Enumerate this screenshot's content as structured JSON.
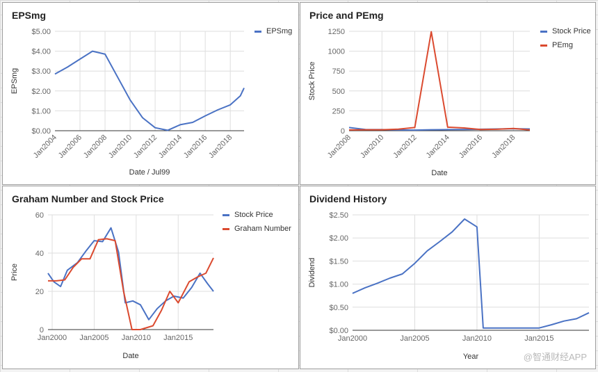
{
  "chart_data": [
    {
      "type": "line",
      "title": "EPSmg",
      "xlabel": "Date / Jul99",
      "ylabel": "EPSmg",
      "x_axis": "year",
      "x_ticks": [
        "Jan2004",
        "Jan2006",
        "Jan2008",
        "Jan2010",
        "Jan2012",
        "Jan2014",
        "Jan2016",
        "Jan2018"
      ],
      "tick_rotate": true,
      "xlim": [
        2004,
        2019.1
      ],
      "ylim": [
        0,
        5
      ],
      "y_ticks": [
        "$0.00",
        "$1.00",
        "$2.00",
        "$3.00",
        "$4.00",
        "$5.00"
      ],
      "legend": "right",
      "series": [
        {
          "name": "EPSmg",
          "color": "#4a72c4",
          "x": [
            2004,
            2005,
            2006,
            2007,
            2008,
            2009,
            2010,
            2011,
            2012,
            2013,
            2014,
            2015,
            2016,
            2017,
            2018,
            2018.8,
            2019.1
          ],
          "y": [
            2.85,
            3.2,
            3.6,
            4.0,
            3.85,
            2.7,
            1.55,
            0.65,
            0.15,
            0.02,
            0.3,
            0.42,
            0.75,
            1.05,
            1.3,
            1.75,
            2.15
          ]
        }
      ]
    },
    {
      "type": "line",
      "title": "Price and PEmg",
      "xlabel": "Date",
      "ylabel": "Stock Price",
      "x_axis": "year",
      "x_ticks": [
        "Jan2008",
        "Jan2010",
        "Jan2012",
        "Jan2014",
        "Jan2016",
        "Jan2018"
      ],
      "tick_rotate": true,
      "xlim": [
        2008,
        2019
      ],
      "ylim": [
        0,
        1250
      ],
      "y_ticks": [
        "0",
        "250",
        "500",
        "750",
        "1000",
        "1250"
      ],
      "legend": "right",
      "series": [
        {
          "name": "Stock Price",
          "color": "#4a72c4",
          "x": [
            2008,
            2009,
            2010,
            2011,
            2012,
            2013,
            2014,
            2015,
            2016,
            2017,
            2018,
            2019
          ],
          "y": [
            40,
            15,
            14,
            10,
            8,
            12,
            14,
            15,
            18,
            22,
            25,
            22
          ]
        },
        {
          "name": "PEmg",
          "color": "#db4a2f",
          "x": [
            2008,
            2009,
            2010,
            2011,
            2012,
            2013,
            2014,
            2015,
            2016,
            2017,
            2018,
            2019
          ],
          "y": [
            10,
            12,
            12,
            20,
            40,
            1245,
            45,
            35,
            15,
            18,
            28,
            10
          ]
        }
      ]
    },
    {
      "type": "line",
      "title": "Graham Number and Stock Price",
      "xlabel": "Date",
      "ylabel": "Price",
      "x_axis": "year",
      "x_ticks": [
        "Jan2000",
        "Jan2005",
        "Jan2010",
        "Jan2015"
      ],
      "tick_rotate": false,
      "xlim": [
        1999.5,
        2019.2
      ],
      "ylim": [
        0,
        60
      ],
      "y_ticks": [
        "0",
        "20",
        "40",
        "60"
      ],
      "legend": "right",
      "series": [
        {
          "name": "Stock Price",
          "color": "#4a72c4",
          "x": [
            1999.5,
            2000.2,
            2001,
            2001.8,
            2003,
            2004,
            2005,
            2006,
            2007,
            2007.9,
            2008.7,
            2009.6,
            2010.5,
            2011.5,
            2012.5,
            2013.5,
            2014.5,
            2015.6,
            2016.6,
            2017.6,
            2018.5,
            2019.2
          ],
          "y": [
            29.5,
            25,
            22.5,
            31,
            35,
            41,
            46.5,
            46,
            53.2,
            40.5,
            14,
            15,
            13,
            5.2,
            11,
            15,
            17.5,
            16.5,
            22,
            29.5,
            24,
            20
          ]
        },
        {
          "name": "Graham Number",
          "color": "#db4a2f",
          "x": [
            1999.5,
            2000.5,
            2001.5,
            2002.5,
            2003.5,
            2004.5,
            2005.5,
            2006.5,
            2007.5,
            2008.5,
            2009.5,
            2010.5,
            2012,
            2013,
            2014,
            2015,
            2016.3,
            2017.3,
            2018.3,
            2019.2
          ],
          "y": [
            25.5,
            25.5,
            26,
            32.5,
            37,
            37,
            47,
            47.5,
            46.5,
            20,
            0,
            0,
            2,
            10,
            20,
            14,
            25,
            27.5,
            29.5,
            37.5
          ]
        }
      ]
    },
    {
      "type": "line",
      "title": "Dividend History",
      "xlabel": "Year",
      "ylabel": "Dividend",
      "x_axis": "year",
      "x_ticks": [
        "Jan2000",
        "Jan2005",
        "Jan2010",
        "Jan2015"
      ],
      "tick_rotate": false,
      "xlim": [
        2000,
        2019
      ],
      "ylim": [
        0,
        2.5
      ],
      "y_ticks": [
        "$0.00",
        "$0.50",
        "$1.00",
        "$1.50",
        "$2.00",
        "$2.50"
      ],
      "legend": "none",
      "series": [
        {
          "name": "",
          "color": "#4a72c4",
          "x": [
            2000,
            2001,
            2002,
            2003,
            2004,
            2005,
            2006,
            2007,
            2008,
            2009,
            2010,
            2010.5,
            2011,
            2012,
            2013,
            2014,
            2015,
            2016,
            2017,
            2018,
            2019
          ],
          "y": [
            0.8,
            0.92,
            1.02,
            1.13,
            1.22,
            1.45,
            1.72,
            1.92,
            2.13,
            2.41,
            2.24,
            0.05,
            0.05,
            0.05,
            0.05,
            0.05,
            0.05,
            0.12,
            0.2,
            0.25,
            0.38
          ]
        }
      ]
    }
  ],
  "watermark": "@智通财经APP"
}
